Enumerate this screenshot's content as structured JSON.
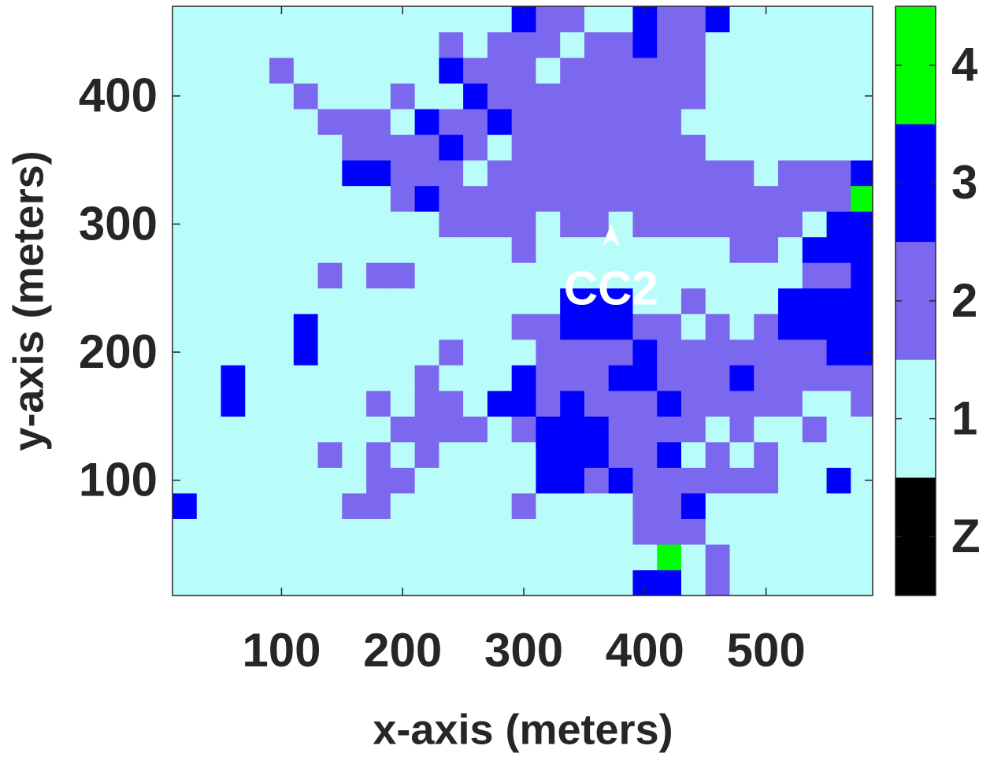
{
  "chart_data": {
    "type": "heatmap",
    "xlabel": "x-axis (meters)",
    "ylabel": "y-axis (meters)",
    "x": [
      20,
      40,
      60,
      80,
      100,
      120,
      140,
      160,
      180,
      200,
      220,
      240,
      260,
      280,
      300,
      320,
      340,
      360,
      380,
      400,
      420,
      440,
      460,
      480,
      500,
      520,
      540,
      560,
      580
    ],
    "y": [
      20,
      40,
      60,
      80,
      100,
      120,
      140,
      160,
      180,
      200,
      220,
      240,
      260,
      280,
      300,
      320,
      340,
      360,
      380,
      400,
      420,
      440,
      460
    ],
    "z": [
      [
        1,
        1,
        1,
        1,
        1,
        1,
        1,
        1,
        1,
        1,
        1,
        1,
        1,
        1,
        1,
        1,
        1,
        1,
        1,
        3,
        3,
        1,
        2,
        1,
        1,
        1,
        1,
        1,
        1
      ],
      [
        1,
        1,
        1,
        1,
        1,
        1,
        1,
        1,
        1,
        1,
        1,
        1,
        1,
        1,
        1,
        1,
        1,
        1,
        1,
        1,
        4,
        1,
        2,
        1,
        1,
        1,
        1,
        1,
        1
      ],
      [
        1,
        1,
        1,
        1,
        1,
        1,
        1,
        1,
        1,
        1,
        1,
        1,
        1,
        1,
        1,
        1,
        1,
        1,
        1,
        2,
        2,
        2,
        1,
        1,
        1,
        1,
        1,
        1,
        1
      ],
      [
        3,
        1,
        1,
        1,
        1,
        1,
        1,
        2,
        2,
        1,
        1,
        1,
        1,
        1,
        2,
        1,
        1,
        1,
        1,
        2,
        2,
        3,
        1,
        1,
        1,
        1,
        1,
        1,
        1
      ],
      [
        1,
        1,
        1,
        1,
        1,
        1,
        1,
        1,
        2,
        2,
        1,
        1,
        1,
        1,
        1,
        3,
        3,
        2,
        3,
        2,
        2,
        2,
        2,
        2,
        2,
        1,
        1,
        3,
        1
      ],
      [
        1,
        1,
        1,
        1,
        1,
        1,
        2,
        1,
        2,
        1,
        2,
        1,
        1,
        1,
        1,
        3,
        3,
        3,
        2,
        2,
        3,
        1,
        2,
        1,
        2,
        1,
        1,
        1,
        1
      ],
      [
        1,
        1,
        1,
        1,
        1,
        1,
        1,
        1,
        1,
        2,
        2,
        2,
        2,
        1,
        2,
        3,
        3,
        3,
        2,
        2,
        2,
        2,
        1,
        2,
        1,
        1,
        2,
        1,
        1
      ],
      [
        1,
        1,
        3,
        1,
        1,
        1,
        1,
        1,
        2,
        1,
        2,
        2,
        1,
        3,
        3,
        2,
        3,
        2,
        2,
        2,
        3,
        2,
        2,
        2,
        2,
        2,
        1,
        1,
        2
      ],
      [
        1,
        1,
        3,
        1,
        1,
        1,
        1,
        1,
        1,
        1,
        2,
        1,
        1,
        1,
        3,
        2,
        2,
        2,
        3,
        3,
        2,
        2,
        2,
        3,
        2,
        2,
        2,
        2,
        2
      ],
      [
        1,
        1,
        1,
        1,
        1,
        3,
        1,
        1,
        1,
        1,
        1,
        2,
        1,
        1,
        1,
        2,
        2,
        2,
        2,
        3,
        2,
        2,
        2,
        2,
        2,
        2,
        2,
        3,
        3
      ],
      [
        1,
        1,
        1,
        1,
        1,
        3,
        1,
        1,
        1,
        1,
        1,
        1,
        1,
        1,
        2,
        2,
        3,
        3,
        3,
        2,
        2,
        1,
        2,
        1,
        2,
        3,
        3,
        3,
        3
      ],
      [
        1,
        1,
        1,
        1,
        1,
        1,
        1,
        1,
        1,
        1,
        1,
        1,
        1,
        1,
        1,
        1,
        3,
        3,
        3,
        1,
        1,
        2,
        1,
        1,
        1,
        3,
        3,
        3,
        3
      ],
      [
        1,
        1,
        1,
        1,
        1,
        1,
        2,
        1,
        2,
        2,
        1,
        1,
        1,
        1,
        1,
        1,
        1,
        1,
        1,
        1,
        1,
        1,
        1,
        1,
        1,
        1,
        2,
        2,
        3
      ],
      [
        1,
        1,
        1,
        1,
        1,
        1,
        1,
        1,
        1,
        1,
        1,
        1,
        1,
        1,
        2,
        1,
        1,
        1,
        1,
        1,
        1,
        1,
        1,
        2,
        2,
        1,
        3,
        3,
        3
      ],
      [
        1,
        1,
        1,
        1,
        1,
        1,
        1,
        1,
        1,
        1,
        1,
        2,
        2,
        2,
        2,
        1,
        2,
        2,
        1,
        2,
        2,
        2,
        2,
        2,
        2,
        2,
        1,
        3,
        3
      ],
      [
        1,
        1,
        1,
        1,
        1,
        1,
        1,
        1,
        1,
        2,
        3,
        2,
        2,
        2,
        2,
        2,
        2,
        2,
        2,
        2,
        2,
        2,
        2,
        2,
        2,
        2,
        2,
        2,
        4
      ],
      [
        1,
        1,
        1,
        1,
        1,
        1,
        1,
        3,
        3,
        2,
        2,
        2,
        1,
        2,
        2,
        2,
        2,
        2,
        2,
        2,
        2,
        2,
        2,
        2,
        1,
        2,
        2,
        2,
        3
      ],
      [
        1,
        1,
        1,
        1,
        1,
        1,
        1,
        2,
        2,
        2,
        2,
        3,
        2,
        1,
        2,
        2,
        2,
        2,
        2,
        2,
        2,
        2,
        1,
        1,
        1,
        1,
        1,
        1,
        1
      ],
      [
        1,
        1,
        1,
        1,
        1,
        1,
        2,
        2,
        2,
        1,
        3,
        2,
        2,
        3,
        2,
        2,
        2,
        2,
        2,
        2,
        2,
        1,
        1,
        1,
        1,
        1,
        1,
        1,
        1
      ],
      [
        1,
        1,
        1,
        1,
        1,
        2,
        1,
        1,
        1,
        2,
        1,
        1,
        3,
        2,
        2,
        2,
        2,
        2,
        2,
        2,
        2,
        2,
        1,
        1,
        1,
        1,
        1,
        1,
        1
      ],
      [
        1,
        1,
        1,
        1,
        2,
        1,
        1,
        1,
        1,
        1,
        1,
        3,
        2,
        2,
        2,
        1,
        2,
        2,
        2,
        2,
        2,
        2,
        1,
        1,
        1,
        1,
        1,
        1,
        1
      ],
      [
        1,
        1,
        1,
        1,
        1,
        1,
        1,
        1,
        1,
        1,
        1,
        2,
        1,
        2,
        2,
        2,
        1,
        2,
        2,
        3,
        2,
        2,
        1,
        1,
        1,
        1,
        1,
        1,
        1
      ],
      [
        1,
        1,
        1,
        1,
        1,
        1,
        1,
        1,
        1,
        1,
        1,
        1,
        1,
        1,
        3,
        2,
        2,
        1,
        1,
        3,
        2,
        2,
        3,
        1,
        1,
        1,
        1,
        1,
        1
      ]
    ],
    "xlim": [
      10,
      588
    ],
    "ylim": [
      10,
      470
    ],
    "xticks": [
      100,
      200,
      300,
      400,
      500
    ],
    "yticks": [
      100,
      200,
      300,
      400
    ],
    "colorbar": {
      "colors": [
        "#000000",
        "#b9fdfb",
        "#7b68ee",
        "#0000ff",
        "#00ff00"
      ],
      "clim": [
        -0.5,
        4.5
      ],
      "ticks": [
        {
          "value": 0,
          "label": "Z"
        },
        1,
        2,
        3,
        4
      ]
    },
    "annotations": [
      {
        "text": "CC2",
        "x": 372,
        "y": 300
      }
    ]
  }
}
